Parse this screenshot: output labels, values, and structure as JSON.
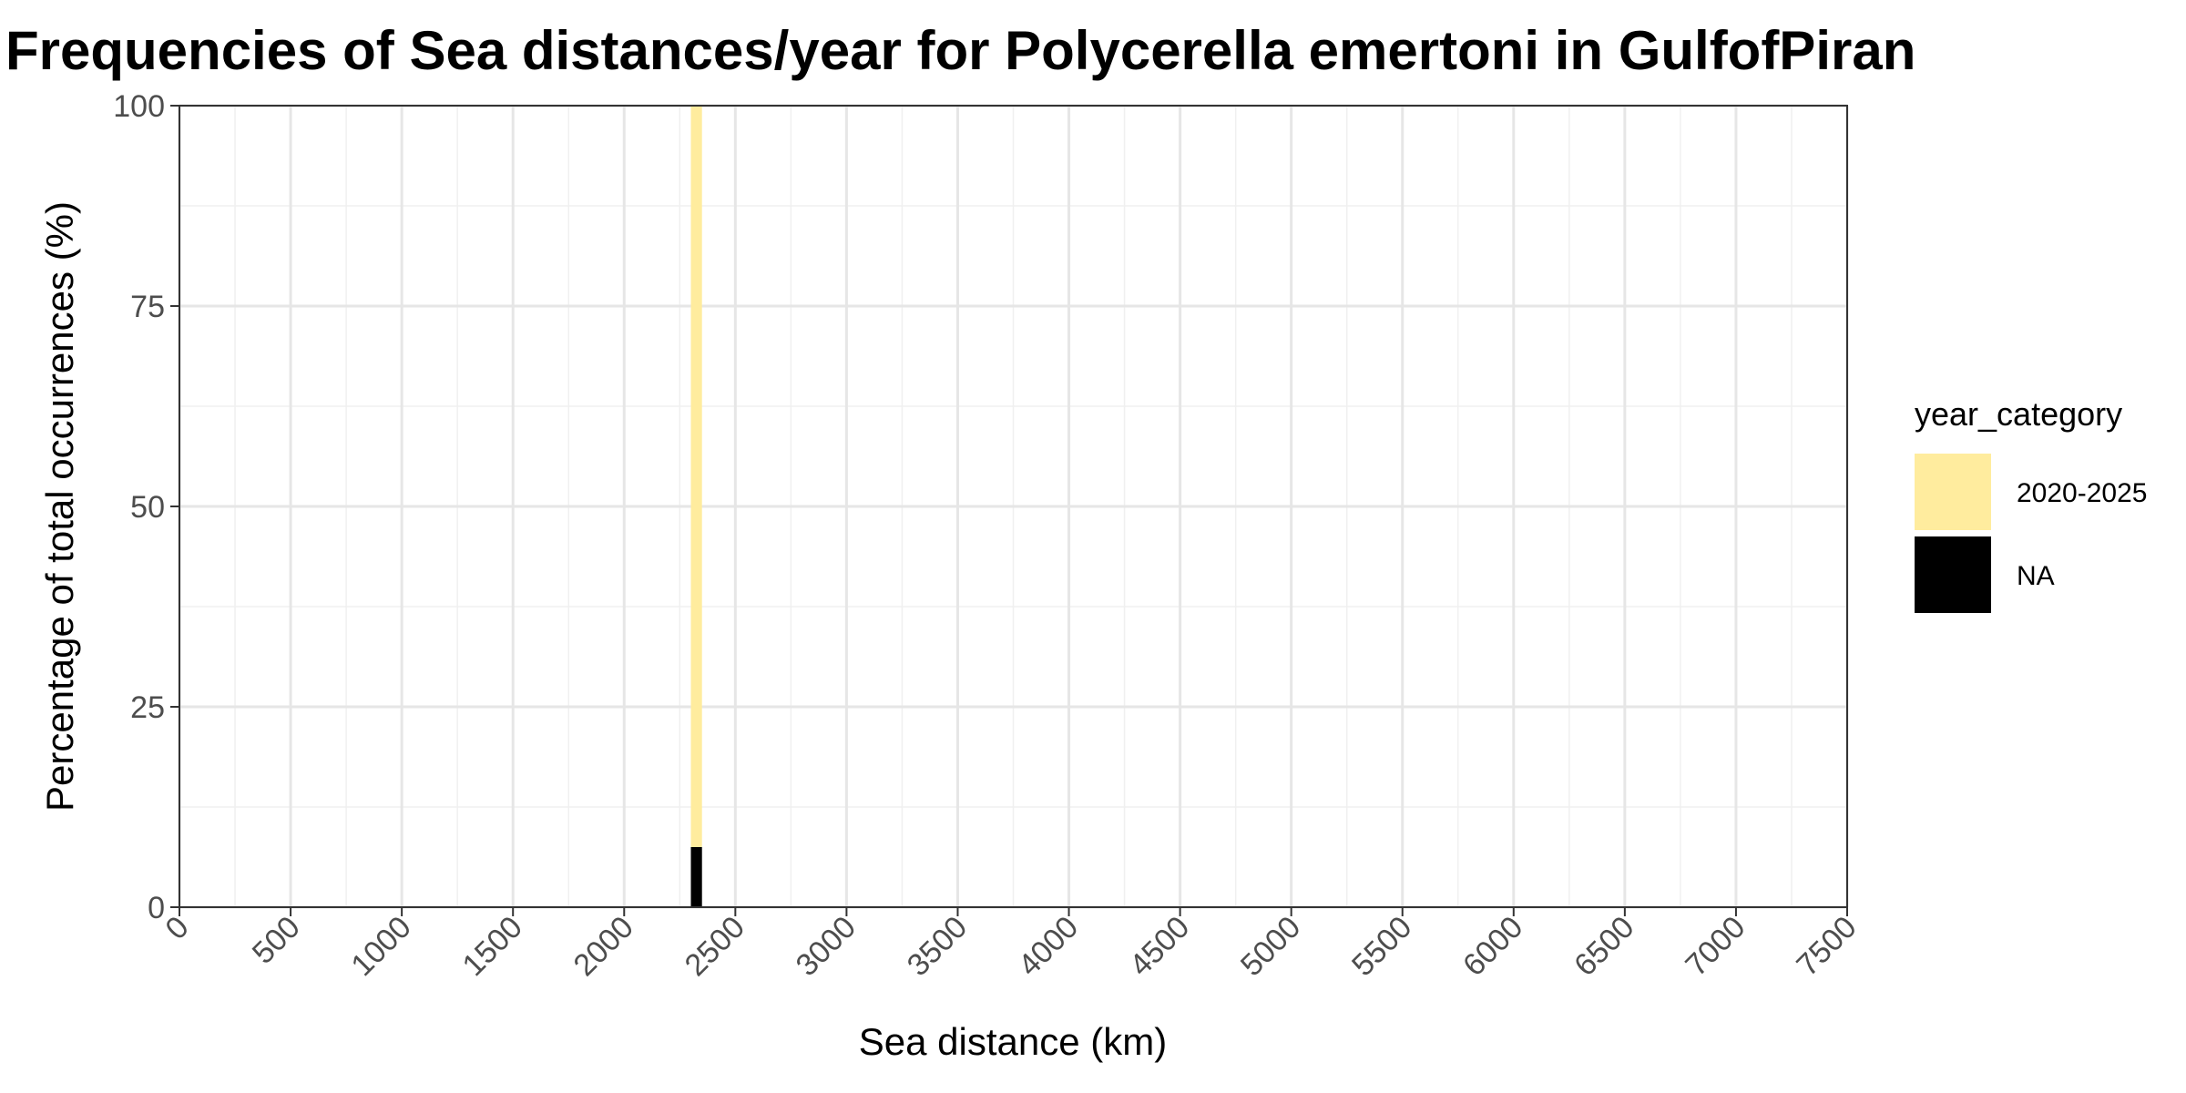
{
  "chart_data": {
    "type": "bar",
    "stacked": true,
    "title": "Frequencies of Sea distances/year for Polycerella emertoni in GulfofPiran",
    "xlabel": "Sea distance (km)",
    "ylabel": "Percentage of total occurrences (%)",
    "xlim": [
      0,
      7500
    ],
    "ylim": [
      0,
      100
    ],
    "x_ticks": [
      0,
      500,
      1000,
      1500,
      2000,
      2500,
      3000,
      3500,
      4000,
      4500,
      5000,
      5500,
      6000,
      6500,
      7000,
      7500
    ],
    "y_ticks": [
      0,
      25,
      50,
      75,
      100
    ],
    "grid": true,
    "legend": {
      "title": "year_category",
      "position": "right",
      "items": [
        {
          "label": "2020-2025",
          "color": "#FFEC9E"
        },
        {
          "label": "NA",
          "color": "#000000"
        }
      ]
    },
    "bin_width_km": 50,
    "bars": [
      {
        "x_start": 2300,
        "x_end": 2350,
        "segments": [
          {
            "series": "NA",
            "value": 7.5
          },
          {
            "series": "2020-2025",
            "value": 92.5
          }
        ]
      }
    ]
  }
}
